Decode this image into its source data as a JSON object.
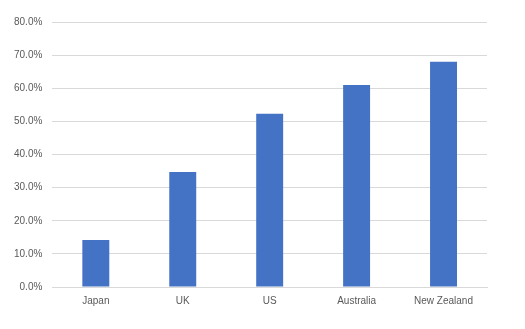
{
  "chart_data": {
    "type": "bar",
    "categories": [
      "Japan",
      "UK",
      "US",
      "Australia",
      "New Zealand"
    ],
    "values": [
      14.2,
      34.7,
      52.3,
      61.0,
      68.0
    ],
    "color": "#4472c4",
    "ylim": [
      0,
      80
    ],
    "yticks": [
      {
        "value": 0,
        "label": "0.0%"
      },
      {
        "value": 10,
        "label": "10.0%"
      },
      {
        "value": 20,
        "label": "20.0%"
      },
      {
        "value": 30,
        "label": "30.0%"
      },
      {
        "value": 40,
        "label": "40.0%"
      },
      {
        "value": 50,
        "label": "50.0%"
      },
      {
        "value": 60,
        "label": "60.0%"
      },
      {
        "value": 70,
        "label": "70.0%"
      },
      {
        "value": 80,
        "label": "80.0%"
      }
    ],
    "grid": true
  }
}
